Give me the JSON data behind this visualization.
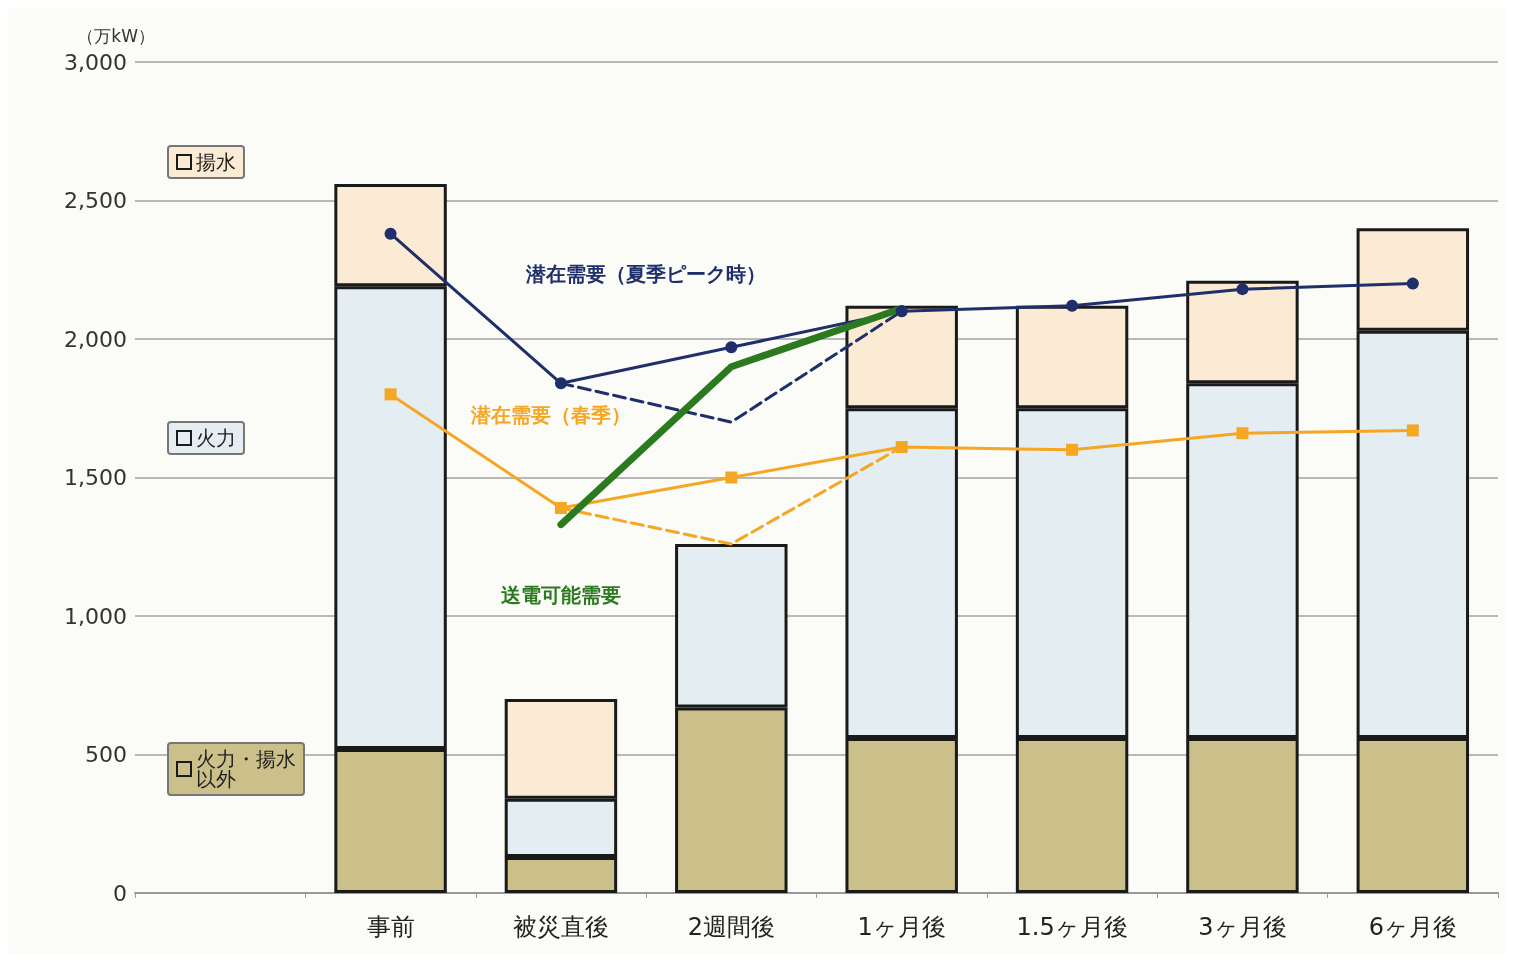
{
  "chart_data": {
    "type": "bar",
    "stacked": true,
    "ylabel": "（万kW）",
    "categories": [
      null,
      "事前",
      "被災直後",
      "2週間後",
      "1ヶ月後",
      "1.5ヶ月後",
      "3ヶ月後",
      "6ヶ月後"
    ],
    "series": [
      {
        "name": "火力・揚水以外",
        "color": "#cbbf8a",
        "values": [
          null,
          520,
          130,
          670,
          560,
          560,
          560,
          560
        ]
      },
      {
        "name": "火力",
        "color": "#e4eef2",
        "values": [
          null,
          1670,
          210,
          590,
          1190,
          1190,
          1280,
          1470
        ]
      },
      {
        "name": "揚水",
        "color": "#fcebd4",
        "values": [
          null,
          370,
          360,
          null,
          370,
          370,
          370,
          370
        ]
      },
      {
        "type": "line",
        "name": "潜在需要（夏季ピーク時）",
        "color": "#1f2f6b",
        "marker": "circle",
        "line_style": "solid",
        "values": [
          null,
          2380,
          1840,
          1970,
          2100,
          2120,
          2180,
          2200
        ]
      },
      {
        "type": "line",
        "color": "#1f2f6b",
        "line_style": "dashed",
        "values": [
          null,
          null,
          1840,
          1700,
          2100,
          null,
          null,
          null
        ]
      },
      {
        "type": "line",
        "name": "潜在需要（春季）",
        "color": "#f5a623",
        "marker": "square",
        "line_style": "solid",
        "values": [
          null,
          1800,
          1390,
          1500,
          1610,
          1600,
          1660,
          1670
        ]
      },
      {
        "type": "line",
        "color": "#f5a623",
        "line_style": "dashed",
        "values": [
          null,
          null,
          1390,
          1260,
          1610,
          null,
          null,
          null
        ]
      },
      {
        "type": "line",
        "name": "送電可能需要",
        "color": "#2b7a1f",
        "marker": "none",
        "line_style": "solid",
        "values": [
          null,
          null,
          1330,
          1900,
          2110,
          null,
          null,
          null
        ]
      }
    ],
    "ylim": [
      0,
      3000
    ],
    "yticks": [
      {
        "value": 0,
        "label": "0"
      },
      {
        "value": 500,
        "label": "500"
      },
      {
        "value": 1000,
        "label": "1,000"
      },
      {
        "value": 1500,
        "label": "1,500"
      },
      {
        "value": 2000,
        "label": "2,000"
      },
      {
        "value": 2500,
        "label": "2,500"
      },
      {
        "value": 3000,
        "label": "3,000"
      }
    ],
    "grid": "y",
    "legend": "left"
  }
}
